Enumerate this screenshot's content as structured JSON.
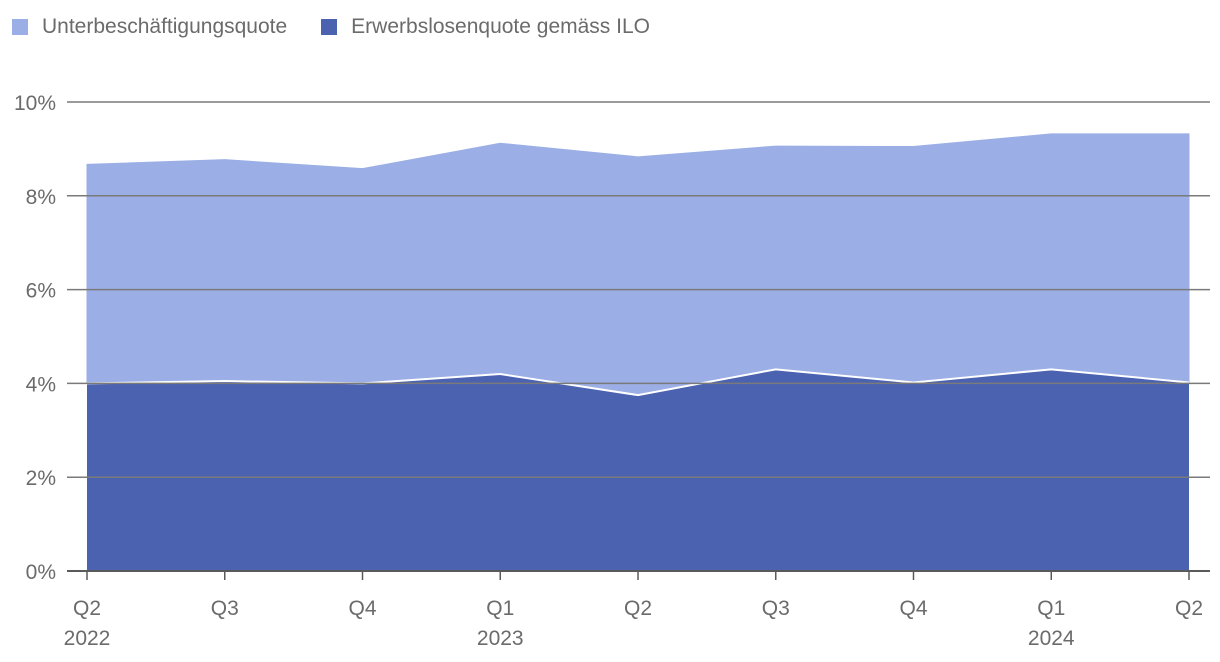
{
  "chart_data": {
    "type": "area",
    "stacked": true,
    "categories": [
      "Q2",
      "Q3",
      "Q4",
      "Q1",
      "Q2",
      "Q3",
      "Q4",
      "Q1",
      "Q2"
    ],
    "year_labels": [
      "2022",
      "",
      "",
      "2023",
      "",
      "",
      "",
      "2024",
      ""
    ],
    "series": [
      {
        "name": "Erwerbslosenquote gemäss ILO",
        "color": "#4a62b0",
        "values": [
          4.0,
          4.05,
          4.0,
          4.2,
          3.75,
          4.3,
          4.02,
          4.3,
          4.02
        ]
      },
      {
        "name": "Unterbeschäftigungsquote",
        "color": "#9baee6",
        "values": [
          4.67,
          4.72,
          4.58,
          4.92,
          5.08,
          4.76,
          5.03,
          5.02,
          5.3
        ]
      }
    ],
    "legend_order": [
      "Unterbeschäftigungsquote",
      "Erwerbslosenquote gemäss ILO"
    ],
    "yticks": [
      "0%",
      "2%",
      "4%",
      "6%",
      "8%",
      "10%"
    ],
    "ylim": [
      0,
      10
    ],
    "grid": true,
    "legend_position": "top-left"
  }
}
